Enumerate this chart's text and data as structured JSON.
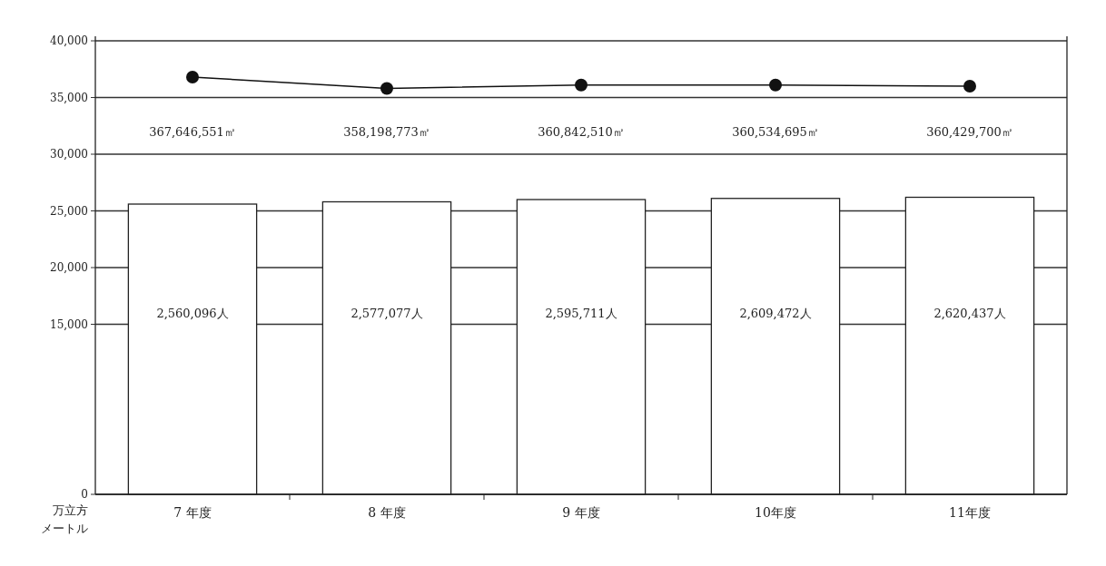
{
  "chart_data": {
    "type": "bar",
    "ylabel": "万立方メートル",
    "categories": [
      "7 年度",
      "8 年度",
      "9 年度",
      "10年度",
      "11年度"
    ],
    "ylim": [
      0,
      40000
    ],
    "yticks": [
      {
        "value": 0,
        "label": "0"
      },
      {
        "value": 15000,
        "label": "15,000"
      },
      {
        "value": 20000,
        "label": "20,000"
      },
      {
        "value": 25000,
        "label": "25,000"
      },
      {
        "value": 30000,
        "label": "30,000"
      },
      {
        "value": 35000,
        "label": "35,000"
      },
      {
        "value": 40000,
        "label": "40,000"
      }
    ],
    "grid": "y",
    "series": [
      {
        "color": "#ffffff",
        "values": [
          25600,
          25800,
          26000,
          26100,
          26200
        ]
      },
      {
        "type": "line",
        "color": "#111111",
        "marker": "circle",
        "values": [
          36800,
          35800,
          36100,
          36100,
          36000
        ]
      }
    ],
    "annotations": [
      "2,560,096人",
      "2,577,077人",
      "2,595,711人",
      "2,609,472人",
      "2,620,437人",
      "367,646,551㎡",
      "358,198,773㎡",
      "360,842,510㎡",
      "360,534,695㎡",
      "360,429,700㎡"
    ]
  }
}
